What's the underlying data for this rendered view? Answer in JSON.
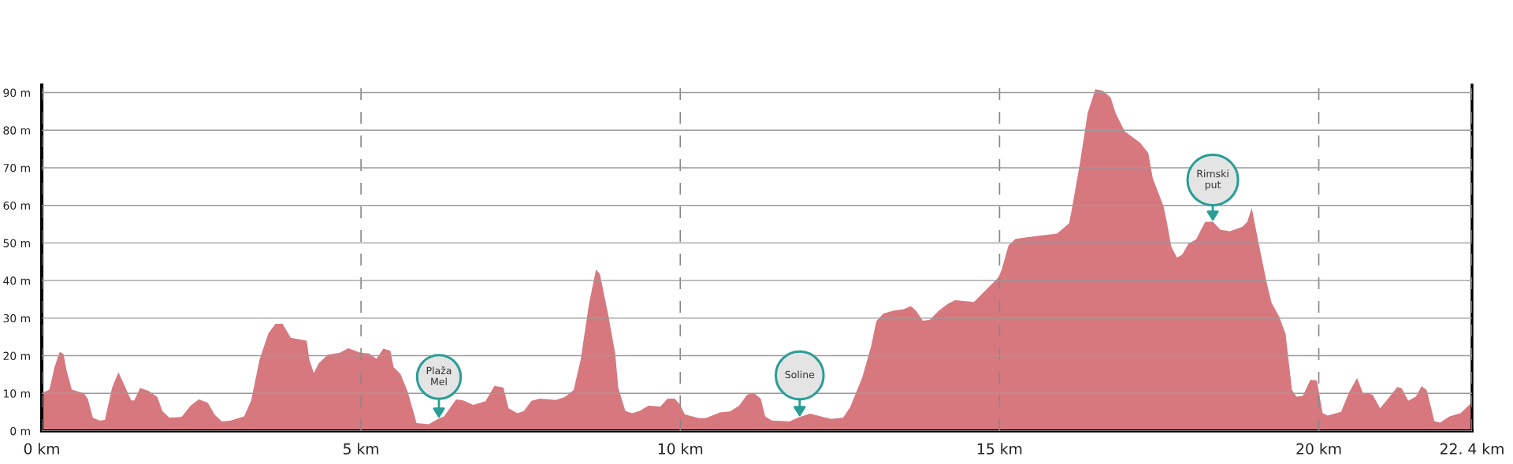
{
  "chart_data": {
    "type": "area",
    "color": "#d7787f",
    "x": [
      0,
      0.12,
      0.2,
      0.28,
      0.34,
      0.39,
      0.47,
      0.66,
      0.72,
      0.8,
      0.91,
      0.99,
      1.1,
      1.2,
      1.29,
      1.4,
      1.45,
      1.54,
      1.67,
      1.81,
      1.89,
      2.0,
      2.19,
      2.33,
      2.46,
      2.6,
      2.71,
      2.82,
      2.95,
      3.17,
      3.28,
      3.41,
      3.55,
      3.66,
      3.77,
      3.9,
      4.15,
      4.19,
      4.26,
      4.34,
      4.48,
      4.67,
      4.8,
      4.99,
      5.13,
      5.24,
      5.35,
      5.46,
      5.51,
      5.62,
      5.73,
      5.87,
      6.06,
      6.22,
      6.3,
      6.49,
      6.6,
      6.76,
      6.95,
      7.09,
      7.23,
      7.31,
      7.45,
      7.55,
      7.67,
      7.8,
      8.05,
      8.19,
      8.33,
      8.44,
      8.57,
      8.68,
      8.74,
      8.87,
      8.98,
      9.03,
      9.14,
      9.25,
      9.36,
      9.5,
      9.69,
      9.8,
      9.91,
      9.99,
      10.07,
      10.29,
      10.4,
      10.62,
      10.78,
      10.92,
      11.05,
      11.16,
      11.26,
      11.33,
      11.43,
      11.71,
      11.87,
      12.03,
      12.2,
      12.36,
      12.55,
      12.66,
      12.85,
      12.99,
      13.07,
      13.18,
      13.34,
      13.5,
      13.61,
      13.69,
      13.8,
      13.91,
      14.05,
      14.19,
      14.3,
      14.6,
      14.98,
      15.03,
      15.14,
      15.25,
      15.47,
      15.9,
      16.09,
      16.14,
      16.26,
      16.38,
      16.5,
      16.62,
      16.74,
      16.82,
      16.96,
      17.2,
      17.33,
      17.4,
      17.57,
      17.62,
      17.69,
      17.78,
      17.86,
      17.96,
      18.08,
      18.22,
      18.34,
      18.46,
      18.61,
      18.8,
      18.88,
      18.95,
      19.05,
      19.19,
      19.26,
      19.38,
      19.48,
      19.58,
      19.65,
      19.75,
      19.87,
      19.97,
      20.06,
      20.14,
      20.35,
      20.47,
      20.6,
      20.69,
      20.84,
      20.96,
      21.1,
      21.23,
      21.3,
      21.4,
      21.52,
      21.61,
      21.69,
      21.81,
      21.9,
      22.05,
      22.22,
      22.4
    ],
    "values": [
      10,
      11,
      17,
      21,
      20.5,
      16,
      11,
      10,
      8.6,
      3.5,
      2.7,
      3,
      11.4,
      15.6,
      12.3,
      8.1,
      8.1,
      11.4,
      10.7,
      9,
      5.3,
      3.5,
      3.7,
      6.7,
      8.4,
      7.5,
      4.3,
      2.5,
      2.7,
      3.9,
      8.1,
      18.9,
      26,
      28.5,
      28.5,
      24.8,
      24,
      19,
      15.4,
      18,
      20.3,
      20.8,
      22,
      20.8,
      20.6,
      19.2,
      21.9,
      21.3,
      17,
      15.1,
      10.5,
      2.1,
      1.8,
      3.3,
      3.9,
      8.4,
      8.1,
      6.9,
      7.9,
      12,
      11.5,
      6,
      4.7,
      5.3,
      8,
      8.6,
      8.2,
      9,
      10.9,
      18.9,
      33.8,
      42.9,
      41.8,
      31,
      20.7,
      11.4,
      5.3,
      4.7,
      5.3,
      6.7,
      6.5,
      8.6,
      8.6,
      7.2,
      4.4,
      3.4,
      3.4,
      4.9,
      5.2,
      6.7,
      9.7,
      10,
      8.6,
      3.9,
      2.8,
      2.5,
      3.7,
      4.6,
      3.9,
      3.2,
      3.5,
      6.3,
      14.2,
      22.6,
      29.2,
      31.2,
      32,
      32.4,
      33.2,
      32,
      29.3,
      29.6,
      32,
      33.8,
      34.8,
      34.3,
      40.8,
      42.7,
      49.3,
      51.1,
      51.6,
      52.5,
      55.2,
      59.7,
      71.3,
      84.5,
      90.9,
      90.5,
      88.7,
      84.5,
      79.7,
      76.7,
      73.9,
      67.2,
      59.7,
      55.6,
      49,
      46.1,
      46.9,
      49.8,
      51,
      55.6,
      55.7,
      53.5,
      53.1,
      54.3,
      55.6,
      59.3,
      50.6,
      39,
      34.1,
      30.4,
      25.8,
      10.9,
      9.1,
      9.3,
      13.6,
      13.4,
      4.7,
      4.1,
      5.1,
      10.1,
      14.1,
      10.1,
      9.7,
      6,
      8.9,
      11.7,
      11.3,
      8,
      9.1,
      11.9,
      10.9,
      2.6,
      2.2,
      3.9,
      4.7,
      7.6
    ],
    "xlim": [
      0,
      22.4
    ],
    "ylim": [
      0,
      92
    ],
    "xticks": [
      {
        "value": 0,
        "label": "0 km"
      },
      {
        "value": 5,
        "label": "5 km"
      },
      {
        "value": 10,
        "label": "10 km"
      },
      {
        "value": 15,
        "label": "15 km"
      },
      {
        "value": 20,
        "label": "20 km"
      },
      {
        "value": 22.4,
        "label": "22. 4 km"
      }
    ],
    "yticks": [
      {
        "value": 0,
        "label": "0 m"
      },
      {
        "value": 10,
        "label": "10 m"
      },
      {
        "value": 20,
        "label": "20 m"
      },
      {
        "value": 30,
        "label": "30 m"
      },
      {
        "value": 40,
        "label": "40 m"
      },
      {
        "value": 50,
        "label": "50 m"
      },
      {
        "value": 60,
        "label": "60 m"
      },
      {
        "value": 70,
        "label": "70 m"
      },
      {
        "value": 80,
        "label": "80 m"
      },
      {
        "value": 90,
        "label": "90 m"
      }
    ],
    "grid": true,
    "annotations": [
      {
        "text": "Plaža\nMel",
        "x": 6.22,
        "y": 3.3
      },
      {
        "text": "Soline",
        "x": 11.87,
        "y": 3.7
      },
      {
        "text": "Rimski\nput",
        "x": 18.34,
        "y": 55.7
      }
    ]
  }
}
